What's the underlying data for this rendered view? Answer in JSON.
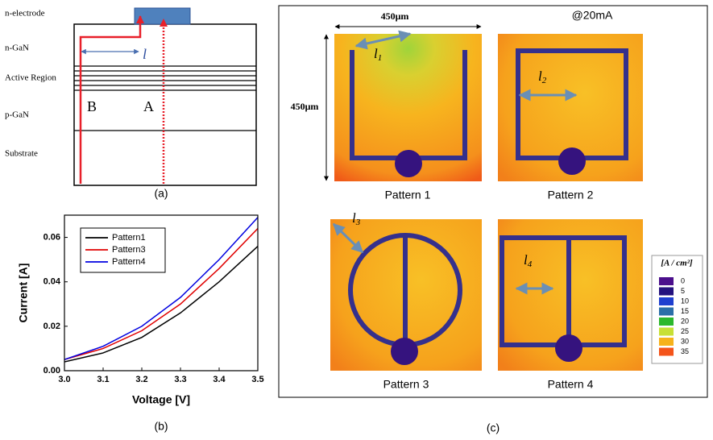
{
  "panel_a": {
    "layers": [
      "n-electrode",
      "n-GaN",
      "Active Region",
      "p-GaN",
      "Substrate"
    ],
    "path_labels": [
      "B",
      "A"
    ],
    "length_label": "l",
    "caption": "(a)"
  },
  "chart_data": {
    "type": "line",
    "caption": "(b)",
    "x_label": "Voltage [V]",
    "y_label": "Current [A]",
    "x": [
      3.0,
      3.1,
      3.2,
      3.3,
      3.4,
      3.5
    ],
    "series": [
      {
        "name": "Pattern1",
        "color": "#000000",
        "values": [
          0.004,
          0.008,
          0.015,
          0.026,
          0.04,
          0.056
        ]
      },
      {
        "name": "Pattern3",
        "color": "#e00000",
        "values": [
          0.005,
          0.01,
          0.018,
          0.03,
          0.046,
          0.064
        ]
      },
      {
        "name": "Pattern4",
        "color": "#0000e0",
        "values": [
          0.005,
          0.011,
          0.02,
          0.033,
          0.05,
          0.069
        ]
      }
    ],
    "xlim": [
      3.0,
      3.5
    ],
    "xticks": [
      {
        "value": 3.0,
        "label": "3.0"
      },
      {
        "value": 3.1,
        "label": "3.1"
      },
      {
        "value": 3.2,
        "label": "3.2"
      },
      {
        "value": 3.3,
        "label": "3.3"
      },
      {
        "value": 3.4,
        "label": "3.4"
      },
      {
        "value": 3.5,
        "label": "3.5"
      }
    ],
    "ylim": [
      0,
      0.07
    ],
    "yticks": [
      {
        "value": 0,
        "label": "0.00"
      },
      {
        "value": 0.02,
        "label": "0.02"
      },
      {
        "value": 0.04,
        "label": "0.04"
      },
      {
        "value": 0.06,
        "label": "0.06"
      }
    ],
    "grid": false,
    "legend": "upper left"
  },
  "panel_c": {
    "size_labels": [
      "450μm",
      "450μm"
    ],
    "condition": "@20mA",
    "patterns": [
      "Pattern 1",
      "Pattern 2",
      "Pattern 3",
      "Pattern 4"
    ],
    "lengths": [
      {
        "symbol": "l",
        "index": "1"
      },
      {
        "symbol": "l",
        "index": "2"
      },
      {
        "symbol": "l",
        "index": "3"
      },
      {
        "symbol": "l",
        "index": "4"
      }
    ],
    "colorbar": {
      "title": "[A / cm²]",
      "values": [
        0,
        5,
        10,
        15,
        20,
        25,
        30,
        35
      ],
      "colors": [
        "#4b0f8c",
        "#24127e",
        "#1f3fcf",
        "#2b6fa8",
        "#2cb82c",
        "#c7e036",
        "#f6b21b",
        "#f4541a"
      ]
    },
    "caption": "(c)"
  }
}
